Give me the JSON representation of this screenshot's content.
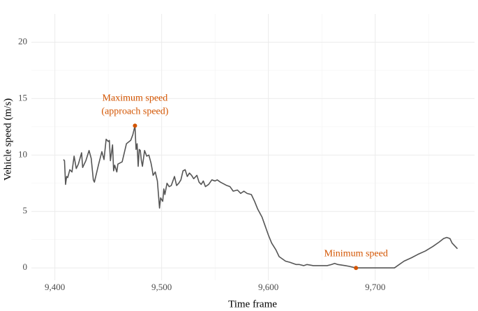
{
  "chart_data": {
    "type": "line",
    "xlabel": "Time frame",
    "ylabel": "Vehicle speed (m/s)",
    "color": "#555555",
    "x": [
      9408,
      9409,
      9410,
      9411,
      9412,
      9414,
      9416,
      9418,
      9420,
      9422,
      9425,
      9426,
      9429,
      9432,
      9434,
      9436,
      9437,
      9441,
      9444,
      9446,
      9448,
      9450,
      9451,
      9452,
      9454,
      9455,
      9456,
      9458,
      9459,
      9463,
      9467,
      9471,
      9473,
      9475,
      9476,
      9477,
      9478,
      9479,
      9480,
      9481,
      9482,
      9484,
      9486,
      9488,
      9490,
      9491,
      9492,
      9494,
      9496,
      9497,
      9498,
      9499,
      9501,
      9502,
      9503,
      9505,
      9507,
      9509,
      9512,
      9514,
      9516,
      9518,
      9520,
      9522,
      9524,
      9526,
      9528,
      9530,
      9533,
      9535,
      9537,
      9539,
      9541,
      9544,
      9547,
      9550,
      9552,
      9555,
      9557,
      9561,
      9564,
      9567,
      9571,
      9574,
      9577,
      9580,
      9584,
      9587,
      9590,
      9594,
      9597,
      9600,
      9603,
      9607,
      9610,
      9613,
      9616,
      9620,
      9623,
      9626,
      9629,
      9633,
      9636,
      9642,
      9649,
      9655,
      9659,
      9662,
      9665,
      9672,
      9675,
      9682,
      9688,
      9701,
      9711,
      9718,
      9721,
      9727,
      9734,
      9740,
      9747,
      9754,
      9760,
      9764,
      9767,
      9770,
      9772,
      9775,
      9777
    ],
    "values": [
      9.6,
      9.5,
      7.4,
      8.1,
      8.0,
      8.7,
      8.5,
      9.9,
      8.8,
      9.2,
      10.2,
      8.9,
      9.5,
      10.4,
      9.7,
      7.8,
      7.6,
      9.2,
      10.3,
      9.6,
      11.4,
      11.2,
      11.3,
      9.5,
      10.9,
      8.6,
      9.1,
      8.5,
      9.2,
      9.4,
      11.0,
      11.3,
      11.8,
      12.6,
      10.5,
      11.0,
      9.0,
      10.5,
      10.4,
      9.5,
      9.0,
      10.4,
      9.9,
      10.0,
      9.3,
      8.8,
      8.2,
      8.5,
      7.7,
      6.5,
      5.3,
      6.2,
      5.9,
      7.0,
      6.5,
      7.5,
      7.2,
      7.3,
      8.1,
      7.3,
      7.5,
      7.8,
      8.6,
      8.7,
      8.1,
      8.4,
      8.2,
      7.9,
      8.2,
      7.6,
      7.4,
      7.7,
      7.2,
      7.4,
      7.8,
      7.7,
      7.8,
      7.6,
      7.5,
      7.3,
      7.2,
      6.8,
      6.9,
      6.6,
      6.8,
      6.6,
      6.5,
      5.9,
      5.2,
      4.5,
      3.7,
      2.9,
      2.2,
      1.6,
      1.0,
      0.8,
      0.6,
      0.5,
      0.4,
      0.3,
      0.3,
      0.2,
      0.3,
      0.2,
      0.2,
      0.2,
      0.3,
      0.4,
      0.3,
      0.2,
      0.15,
      0,
      0,
      0,
      0,
      0,
      0.2,
      0.6,
      0.9,
      1.2,
      1.5,
      1.9,
      2.3,
      2.6,
      2.7,
      2.6,
      2.2,
      1.9,
      1.7
    ],
    "xlim": [
      9378,
      9793
    ],
    "ylim": [
      -1.1,
      22.5
    ],
    "xticks": [
      {
        "value": 9400,
        "label": "9,400"
      },
      {
        "value": 9500,
        "label": "9,500"
      },
      {
        "value": 9600,
        "label": "9,600"
      },
      {
        "value": 9700,
        "label": "9,700"
      }
    ],
    "yticks": [
      0,
      5,
      10,
      15,
      20
    ],
    "xminorticks": [
      9450,
      9550,
      9650,
      9750
    ],
    "yminorticks": [
      2.5,
      7.5,
      12.5,
      17.5
    ],
    "grid": true,
    "annotations": [
      {
        "x": 9475,
        "y": 12.6,
        "lines": [
          "Maximum speed",
          "(approach speed)"
        ],
        "color": "#d35400"
      },
      {
        "x": 9682,
        "y": 0,
        "lines": [
          "Minimum speed"
        ],
        "color": "#d35400"
      }
    ]
  }
}
